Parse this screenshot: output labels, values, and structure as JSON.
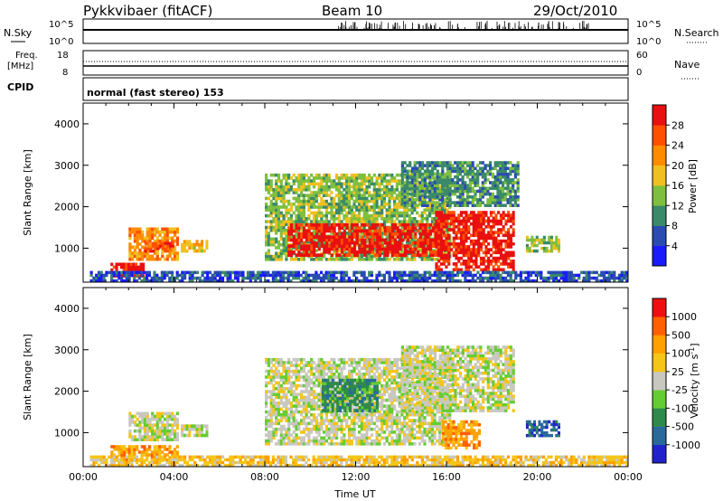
{
  "header": {
    "radar": "Pykkvibaer (fitACF)",
    "beam": "Beam 10",
    "date": "29/Oct/2010"
  },
  "strip_nsky": {
    "left_label": "N.Sky",
    "right_label": "N.Search",
    "left_ticks": [
      "10^5",
      "10^0"
    ],
    "right_ticks": [
      "10^5",
      "10^0"
    ]
  },
  "strip_freq": {
    "left_label_line1": "Freq.",
    "left_label_line2": "[MHz]",
    "right_label": "Nave",
    "left_ticks": [
      "18",
      "8"
    ],
    "right_ticks": [
      "60",
      "0"
    ]
  },
  "cpid": {
    "label": "CPID",
    "value": "normal (fast stereo) 153"
  },
  "chart_data": [
    {
      "type": "heatmap",
      "title": "",
      "ylabel": "Slant Range [km]",
      "yticks": [
        "1000",
        "2000",
        "3000",
        "4000"
      ],
      "ylim": [
        180,
        4500
      ],
      "xlim": [
        0,
        24
      ],
      "colorbar_label": "Power [dB]",
      "colorbar_ticks": [
        "4",
        "8",
        "12",
        "16",
        "20",
        "24",
        "28"
      ],
      "colorbar_colors": [
        "#1a1aff",
        "#2a4cb0",
        "#3a8a6a",
        "#7fbf3f",
        "#f0c020",
        "#ff8c00",
        "#ff5000",
        "#e81010"
      ],
      "echo_regions": [
        {
          "t0": 1.2,
          "t1": 2.7,
          "r0": 300,
          "r1": 650,
          "level": 7
        },
        {
          "t0": 2.0,
          "t1": 4.2,
          "r0": 700,
          "r1": 1500,
          "level": 5
        },
        {
          "t0": 2.7,
          "t1": 4.0,
          "r0": 900,
          "r1": 1150,
          "level": 6
        },
        {
          "t0": 4.3,
          "t1": 5.5,
          "r0": 900,
          "r1": 1200,
          "level": 4
        },
        {
          "t0": 8.0,
          "t1": 16.2,
          "r0": 700,
          "r1": 2800,
          "level": 3
        },
        {
          "t0": 9.0,
          "t1": 15.8,
          "r0": 800,
          "r1": 1600,
          "level": 7
        },
        {
          "t0": 15.5,
          "t1": 19.0,
          "r0": 450,
          "r1": 1900,
          "level": 7
        },
        {
          "t0": 14.0,
          "t1": 19.2,
          "r0": 2000,
          "r1": 3100,
          "level": 2
        },
        {
          "t0": 19.5,
          "t1": 21.0,
          "r0": 900,
          "r1": 1300,
          "level": 3
        },
        {
          "t0": 0.3,
          "t1": 24.0,
          "r0": 180,
          "r1": 450,
          "level": 1
        }
      ]
    },
    {
      "type": "heatmap",
      "title": "",
      "ylabel": "Slant Range [km]",
      "yticks": [
        "1000",
        "2000",
        "3000",
        "4000"
      ],
      "ylim": [
        180,
        4500
      ],
      "xlim": [
        0,
        24
      ],
      "xlabel": "Time UT",
      "xticks": [
        "00:00",
        "04:00",
        "08:00",
        "12:00",
        "16:00",
        "20:00",
        "00:00"
      ],
      "colorbar_label": "Velocity [m s",
      "colorbar_label_sup": "-1",
      "colorbar_label_end": "]",
      "colorbar_ticks": [
        "1000",
        "500",
        "100",
        "25",
        "-25",
        "-100",
        "-500",
        "-1000"
      ],
      "colorbar_colors": [
        "#2222cc",
        "#2a6a9a",
        "#2e8a4a",
        "#66cc33",
        "#c8c8c0",
        "#f5c518",
        "#ffa000",
        "#ff6000",
        "#ee1010"
      ],
      "echo_regions": [
        {
          "t0": 1.2,
          "t1": 4.2,
          "r0": 300,
          "r1": 700,
          "level": 6
        },
        {
          "t0": 2.0,
          "t1": 4.2,
          "r0": 800,
          "r1": 1500,
          "level": 4
        },
        {
          "t0": 4.3,
          "t1": 5.5,
          "r0": 900,
          "r1": 1200,
          "level": 4
        },
        {
          "t0": 8.0,
          "t1": 16.2,
          "r0": 700,
          "r1": 2800,
          "level": 4
        },
        {
          "t0": 10.5,
          "t1": 13.0,
          "r0": 1500,
          "r1": 2300,
          "level": 2
        },
        {
          "t0": 15.8,
          "t1": 17.5,
          "r0": 600,
          "r1": 1300,
          "level": 6
        },
        {
          "t0": 14.0,
          "t1": 19.0,
          "r0": 1500,
          "r1": 3100,
          "level": 4
        },
        {
          "t0": 19.5,
          "t1": 21.0,
          "r0": 900,
          "r1": 1300,
          "level": 1
        },
        {
          "t0": 0.3,
          "t1": 24.0,
          "r0": 180,
          "r1": 450,
          "level": 5
        }
      ]
    }
  ]
}
